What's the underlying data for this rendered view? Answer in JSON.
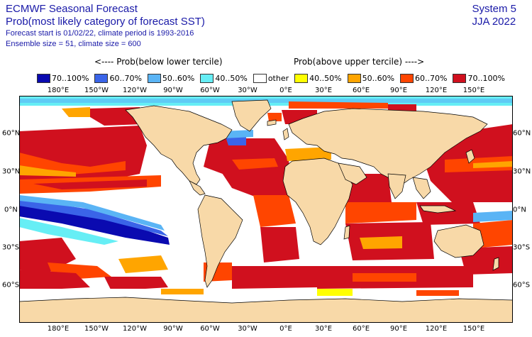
{
  "header": {
    "title": "ECMWF Seasonal Forecast",
    "subtitle": "Prob(most likely category of forecast SST)",
    "line3": "Forecast start is 01/02/22, climate period is 1993-2016",
    "line4": "Ensemble size = 51, climate size = 600"
  },
  "system": {
    "name": "System 5",
    "season": "JJA 2022"
  },
  "tercile": {
    "below": "<---- Prob(below lower tercile)",
    "above": "Prob(above upper tercile) ---->"
  },
  "legend": [
    {
      "label": "70..100%",
      "color": "#0a0ab0"
    },
    {
      "label": "60..70%",
      "color": "#3a64e8"
    },
    {
      "label": "50..60%",
      "color": "#5ab4f5"
    },
    {
      "label": "40..50%",
      "color": "#66eef5"
    },
    {
      "label": "other",
      "color": "#ffffff"
    },
    {
      "label": "40..50%",
      "color": "#ffff00"
    },
    {
      "label": "50..60%",
      "color": "#ffa500"
    },
    {
      "label": "60..70%",
      "color": "#ff4500"
    },
    {
      "label": "70..100%",
      "color": "#d0101e"
    }
  ],
  "lon_labels": [
    "180°E",
    "150°W",
    "120°W",
    "90°W",
    "60°W",
    "30°W",
    "0°E",
    "30°E",
    "60°E",
    "90°E",
    "120°E",
    "150°E"
  ],
  "lat_labels": [
    "60°N",
    "30°N",
    "0°N",
    "30°S",
    "60°S"
  ],
  "colors": {
    "land": "#f8d9a8",
    "ocean_white": "#ffffff",
    "coast": "#000000"
  }
}
